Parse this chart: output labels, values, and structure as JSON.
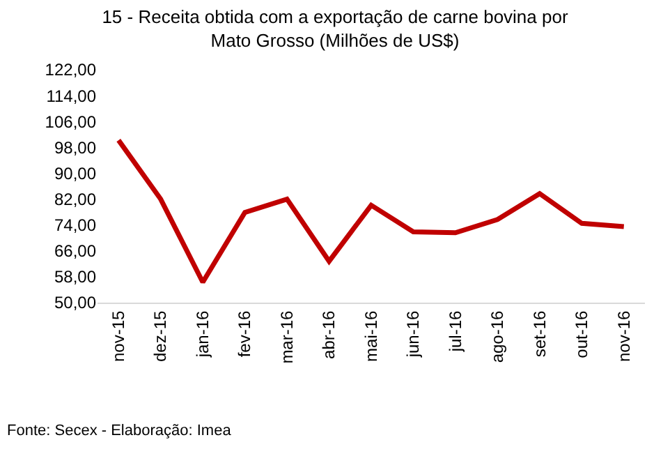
{
  "chart_data": {
    "type": "line",
    "title": "15 - Receita obtida com a exportação de carne bovina por\nMato Grosso (Milhões de US$)",
    "categories": [
      "nov-15",
      "dez-15",
      "jan-16",
      "fev-16",
      "mar-16",
      "abr-16",
      "mai-16",
      "jun-16",
      "jul-16",
      "ago-16",
      "set-16",
      "out-16",
      "nov-16"
    ],
    "series": [
      {
        "color": "#c00000",
        "values": [
          100.2,
          82,
          56.3,
          77.9,
          82,
          62.8,
          80.1,
          71.9,
          71.6,
          75.7,
          83.7,
          74.5,
          73.5
        ]
      }
    ],
    "ylim": [
      50,
      122
    ],
    "yticks": [
      {
        "value": 50,
        "label": "50,00"
      },
      {
        "value": 58,
        "label": "58,00"
      },
      {
        "value": 66,
        "label": "66,00"
      },
      {
        "value": 74,
        "label": "74,00"
      },
      {
        "value": 82,
        "label": "82,00"
      },
      {
        "value": 90,
        "label": "90,00"
      },
      {
        "value": 98,
        "label": "98,00"
      },
      {
        "value": 106,
        "label": "106,00"
      },
      {
        "value": 114,
        "label": "114,00"
      },
      {
        "value": 122,
        "label": "122,00"
      }
    ],
    "grid": false,
    "legend": false,
    "marker": "none",
    "line_style": "solid",
    "annotations": [
      "Fonte: Secex - Elaboração: Imea"
    ]
  }
}
